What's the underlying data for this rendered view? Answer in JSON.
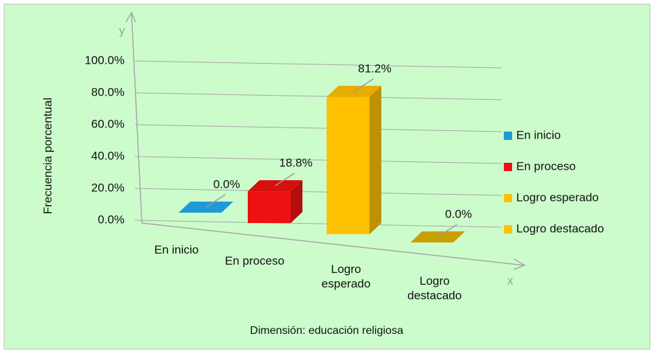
{
  "chart_data": {
    "type": "bar3d",
    "categories": [
      "En inicio",
      "En proceso",
      "Logro esperado",
      "Logro destacado"
    ],
    "values": [
      0,
      18.8,
      81.2,
      0
    ],
    "value_labels": [
      "0.0%",
      "18.8%",
      "81.2%",
      "0.0%"
    ],
    "colors": [
      "#1e9ad6",
      "#ee1111",
      "#ffc000",
      "#c9a000"
    ],
    "legend_colors": [
      "#1e9ad6",
      "#ee1111",
      "#ffc000",
      "#ffc000"
    ],
    "ylim": [
      0,
      100
    ],
    "yticks": [
      {
        "value": 0,
        "label": "0.0%"
      },
      {
        "value": 20,
        "label": "20.0%"
      },
      {
        "value": 40,
        "label": "40.0%"
      },
      {
        "value": 60,
        "label": "60.0%"
      },
      {
        "value": 80,
        "label": "80.0%"
      },
      {
        "value": 100,
        "label": "100.0%"
      }
    ],
    "grid": true,
    "y_axis_label": "Frecuencia porcentual",
    "x_axis_label": "Dimensión: educación religiosa",
    "y_arrow_label": "y",
    "x_arrow_label": "x",
    "legend_position": "right"
  }
}
